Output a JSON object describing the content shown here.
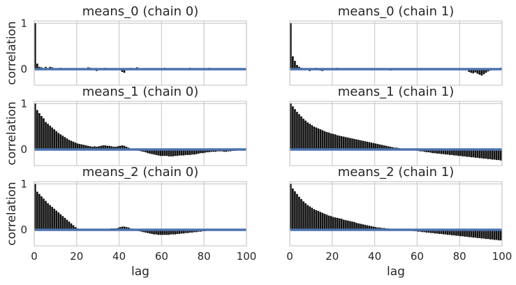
{
  "figure": {
    "xlabel": "lag",
    "ylabel": "correlation"
  },
  "chart_data": [
    {
      "type": "bar",
      "title": "means_0 (chain 0)",
      "xlabel": "",
      "ylabel": "correlation",
      "xlim": [
        0,
        100
      ],
      "ylim": [
        -0.35,
        1.05
      ],
      "xticks": [
        0,
        20,
        40,
        60,
        80,
        100
      ],
      "yticks": [
        0,
        1
      ],
      "bar_color": "#111111",
      "zero_line_color": "#4c72b0",
      "lags": [
        0,
        1,
        2,
        3,
        4,
        5,
        6,
        7,
        8,
        9,
        10,
        11,
        12,
        13,
        14,
        15,
        16,
        17,
        18,
        19,
        20,
        21,
        22,
        23,
        24,
        25,
        26,
        27,
        28,
        29,
        30,
        31,
        32,
        33,
        34,
        35,
        36,
        37,
        38,
        39,
        40,
        41,
        42,
        43,
        44,
        45,
        46,
        47,
        48,
        49,
        50,
        51,
        52,
        53,
        54,
        55,
        56,
        57,
        58,
        59,
        60,
        61,
        62,
        63,
        64,
        65,
        66,
        67,
        68,
        69,
        70,
        71,
        72,
        73,
        74,
        75,
        76,
        77,
        78,
        79,
        80,
        81,
        82,
        83,
        84,
        85,
        86,
        87,
        88,
        89,
        90,
        91,
        92,
        93,
        94,
        95,
        96,
        97,
        98,
        99
      ],
      "values": [
        1.0,
        0.12,
        0.05,
        0.04,
        0.01,
        0.05,
        0.02,
        0.05,
        0.04,
        0.01,
        -0.02,
        0.0,
        0.03,
        0.01,
        -0.01,
        0.02,
        0.02,
        0.0,
        0.0,
        -0.01,
        0.0,
        0.01,
        0.02,
        0.0,
        0.02,
        0.04,
        0.03,
        0.01,
        -0.02,
        -0.04,
        -0.01,
        0.02,
        0.0,
        0.03,
        -0.01,
        -0.02,
        0.02,
        0.01,
        0.0,
        0.02,
        -0.02,
        -0.06,
        -0.08,
        0.0,
        0.02,
        0.03,
        0.0,
        0.01,
        0.04,
        0.0,
        -0.02,
        0.0,
        0.02,
        0.0,
        0.0,
        0.02,
        -0.02,
        0.0,
        0.01,
        0.01,
        0.02,
        0.03,
        0.0,
        -0.01,
        -0.02,
        0.0,
        0.02,
        0.01,
        0.0,
        -0.02,
        0.0,
        0.0,
        0.02,
        0.03,
        0.0,
        -0.01,
        0.0,
        0.01,
        0.0,
        0.0,
        -0.02,
        0.0,
        0.03,
        0.0,
        -0.02,
        0.01,
        0.0,
        -0.02,
        -0.01,
        0.0,
        0.02,
        0.0,
        -0.01,
        -0.01,
        0.02,
        0.0,
        0.0,
        -0.02,
        0.0,
        -0.01
      ]
    },
    {
      "type": "bar",
      "title": "means_0 (chain 1)",
      "xlabel": "",
      "ylabel": "",
      "xlim": [
        0,
        100
      ],
      "ylim": [
        -0.35,
        1.05
      ],
      "xticks": [
        0,
        20,
        40,
        60,
        80,
        100
      ],
      "yticks": [
        0,
        1
      ],
      "bar_color": "#111111",
      "zero_line_color": "#4c72b0",
      "lags": [
        0,
        1,
        2,
        3,
        4,
        5,
        6,
        7,
        8,
        9,
        10,
        11,
        12,
        13,
        14,
        15,
        16,
        17,
        18,
        19,
        20,
        21,
        22,
        23,
        24,
        25,
        26,
        27,
        28,
        29,
        30,
        31,
        32,
        33,
        34,
        35,
        36,
        37,
        38,
        39,
        40,
        41,
        42,
        43,
        44,
        45,
        46,
        47,
        48,
        49,
        50,
        51,
        52,
        53,
        54,
        55,
        56,
        57,
        58,
        59,
        60,
        61,
        62,
        63,
        64,
        65,
        66,
        67,
        68,
        69,
        70,
        71,
        72,
        73,
        74,
        75,
        76,
        77,
        78,
        79,
        80,
        81,
        82,
        83,
        84,
        85,
        86,
        87,
        88,
        89,
        90,
        91,
        92,
        93,
        94,
        95,
        96,
        97,
        98,
        99
      ],
      "values": [
        1.0,
        0.28,
        0.18,
        0.09,
        0.05,
        0.03,
        0.02,
        0.0,
        -0.02,
        -0.04,
        -0.02,
        -0.01,
        0.03,
        0.01,
        -0.03,
        -0.04,
        0.0,
        0.02,
        0.01,
        0.0,
        -0.02,
        0.01,
        0.03,
        0.01,
        0.02,
        -0.01,
        -0.02,
        0.0,
        0.02,
        0.0,
        -0.01,
        -0.02,
        0.0,
        0.01,
        -0.01,
        0.0,
        0.02,
        0.01,
        -0.02,
        0.0,
        0.01,
        0.0,
        -0.01,
        0.02,
        0.0,
        0.01,
        -0.02,
        -0.03,
        0.0,
        0.01,
        0.02,
        0.0,
        -0.01,
        0.0,
        -0.02,
        0.0,
        0.01,
        0.0,
        0.02,
        0.0,
        -0.02,
        0.0,
        0.02,
        0.01,
        0.0,
        -0.01,
        0.0,
        0.02,
        0.01,
        0.0,
        -0.01,
        0.0,
        0.01,
        0.0,
        0.02,
        0.0,
        0.0,
        -0.01,
        0.0,
        0.02,
        -0.02,
        0.01,
        0.0,
        0.0,
        -0.06,
        -0.08,
        -0.09,
        -0.07,
        -0.1,
        -0.12,
        -0.14,
        -0.11,
        -0.08,
        -0.05,
        -0.03,
        0.0,
        0.02,
        0.01,
        0.0,
        0.03
      ]
    },
    {
      "type": "bar",
      "title": "means_1 (chain 0)",
      "xlabel": "",
      "ylabel": "correlation",
      "xlim": [
        0,
        100
      ],
      "ylim": [
        -0.35,
        1.05
      ],
      "xticks": [
        0,
        20,
        40,
        60,
        80,
        100
      ],
      "yticks": [
        0,
        1
      ],
      "bar_color": "#111111",
      "zero_line_color": "#4c72b0",
      "lags": [
        0,
        1,
        2,
        3,
        4,
        5,
        6,
        7,
        8,
        9,
        10,
        11,
        12,
        13,
        14,
        15,
        16,
        17,
        18,
        19,
        20,
        21,
        22,
        23,
        24,
        25,
        26,
        27,
        28,
        29,
        30,
        31,
        32,
        33,
        34,
        35,
        36,
        37,
        38,
        39,
        40,
        41,
        42,
        43,
        44,
        45,
        46,
        47,
        48,
        49,
        50,
        51,
        52,
        53,
        54,
        55,
        56,
        57,
        58,
        59,
        60,
        61,
        62,
        63,
        64,
        65,
        66,
        67,
        68,
        69,
        70,
        71,
        72,
        73,
        74,
        75,
        76,
        77,
        78,
        79,
        80,
        81,
        82,
        83,
        84,
        85,
        86,
        87,
        88,
        89,
        90,
        91,
        92,
        93,
        94,
        95,
        96,
        97,
        98,
        99
      ],
      "values": [
        1.0,
        0.86,
        0.79,
        0.73,
        0.68,
        0.6,
        0.56,
        0.52,
        0.48,
        0.44,
        0.4,
        0.36,
        0.33,
        0.3,
        0.27,
        0.24,
        0.21,
        0.19,
        0.17,
        0.15,
        0.13,
        0.12,
        0.11,
        0.1,
        0.09,
        0.08,
        0.07,
        0.06,
        0.07,
        0.06,
        0.07,
        0.08,
        0.09,
        0.09,
        0.08,
        0.08,
        0.07,
        0.06,
        0.06,
        0.07,
        0.08,
        0.09,
        0.08,
        0.06,
        0.04,
        0.02,
        0.0,
        -0.01,
        -0.02,
        -0.03,
        -0.04,
        -0.05,
        -0.06,
        -0.08,
        -0.09,
        -0.1,
        -0.11,
        -0.12,
        -0.13,
        -0.14,
        -0.14,
        -0.14,
        -0.14,
        -0.15,
        -0.15,
        -0.15,
        -0.14,
        -0.14,
        -0.13,
        -0.13,
        -0.13,
        -0.12,
        -0.12,
        -0.12,
        -0.11,
        -0.11,
        -0.1,
        -0.09,
        -0.08,
        -0.08,
        -0.07,
        -0.06,
        -0.06,
        -0.05,
        -0.05,
        -0.05,
        -0.04,
        -0.04,
        -0.04,
        -0.05,
        -0.05,
        -0.04,
        -0.04,
        -0.03,
        -0.03,
        -0.02,
        -0.02,
        -0.01,
        -0.01,
        -0.01
      ]
    },
    {
      "type": "bar",
      "title": "means_1 (chain 1)",
      "xlabel": "",
      "ylabel": "",
      "xlim": [
        0,
        100
      ],
      "ylim": [
        -0.35,
        1.05
      ],
      "xticks": [
        0,
        20,
        40,
        60,
        80,
        100
      ],
      "yticks": [
        0,
        1
      ],
      "bar_color": "#111111",
      "zero_line_color": "#4c72b0",
      "lags": [
        0,
        1,
        2,
        3,
        4,
        5,
        6,
        7,
        8,
        9,
        10,
        11,
        12,
        13,
        14,
        15,
        16,
        17,
        18,
        19,
        20,
        21,
        22,
        23,
        24,
        25,
        26,
        27,
        28,
        29,
        30,
        31,
        32,
        33,
        34,
        35,
        36,
        37,
        38,
        39,
        40,
        41,
        42,
        43,
        44,
        45,
        46,
        47,
        48,
        49,
        50,
        51,
        52,
        53,
        54,
        55,
        56,
        57,
        58,
        59,
        60,
        61,
        62,
        63,
        64,
        65,
        66,
        67,
        68,
        69,
        70,
        71,
        72,
        73,
        74,
        75,
        76,
        77,
        78,
        79,
        80,
        81,
        82,
        83,
        84,
        85,
        86,
        87,
        88,
        89,
        90,
        91,
        92,
        93,
        94,
        95,
        96,
        97,
        98,
        99
      ],
      "values": [
        1.0,
        0.94,
        0.88,
        0.82,
        0.77,
        0.72,
        0.67,
        0.63,
        0.59,
        0.56,
        0.53,
        0.5,
        0.48,
        0.46,
        0.44,
        0.42,
        0.4,
        0.38,
        0.37,
        0.35,
        0.34,
        0.33,
        0.31,
        0.3,
        0.29,
        0.28,
        0.27,
        0.26,
        0.25,
        0.24,
        0.23,
        0.22,
        0.21,
        0.2,
        0.19,
        0.18,
        0.17,
        0.16,
        0.15,
        0.14,
        0.13,
        0.12,
        0.11,
        0.1,
        0.09,
        0.08,
        0.07,
        0.06,
        0.05,
        0.04,
        0.04,
        0.03,
        0.02,
        0.02,
        0.01,
        0.0,
        0.0,
        -0.01,
        -0.02,
        -0.02,
        -0.03,
        -0.04,
        -0.04,
        -0.05,
        -0.06,
        -0.06,
        -0.07,
        -0.08,
        -0.08,
        -0.09,
        -0.09,
        -0.1,
        -0.1,
        -0.11,
        -0.11,
        -0.12,
        -0.12,
        -0.13,
        -0.13,
        -0.14,
        -0.14,
        -0.15,
        -0.15,
        -0.16,
        -0.16,
        -0.17,
        -0.17,
        -0.18,
        -0.18,
        -0.19,
        -0.19,
        -0.2,
        -0.2,
        -0.21,
        -0.21,
        -0.22,
        -0.22,
        -0.23,
        -0.23,
        -0.24
      ]
    },
    {
      "type": "bar",
      "title": "means_2 (chain 0)",
      "xlabel": "lag",
      "ylabel": "correlation",
      "xlim": [
        0,
        100
      ],
      "ylim": [
        -0.35,
        1.05
      ],
      "xticks": [
        0,
        20,
        40,
        60,
        80,
        100
      ],
      "yticks": [
        0,
        1
      ],
      "xticklabels": [
        "0",
        "20",
        "40",
        "60",
        "80",
        "100"
      ],
      "bar_color": "#111111",
      "zero_line_color": "#4c72b0",
      "lags": [
        0,
        1,
        2,
        3,
        4,
        5,
        6,
        7,
        8,
        9,
        10,
        11,
        12,
        13,
        14,
        15,
        16,
        17,
        18,
        19,
        20,
        21,
        22,
        23,
        24,
        25,
        26,
        27,
        28,
        29,
        30,
        31,
        32,
        33,
        34,
        35,
        36,
        37,
        38,
        39,
        40,
        41,
        42,
        43,
        44,
        45,
        46,
        47,
        48,
        49,
        50,
        51,
        52,
        53,
        54,
        55,
        56,
        57,
        58,
        59,
        60,
        61,
        62,
        63,
        64,
        65,
        66,
        67,
        68,
        69,
        70,
        71,
        72,
        73,
        74,
        75,
        76,
        77,
        78,
        79,
        80,
        81,
        82,
        83,
        84,
        85,
        86,
        87,
        88,
        89,
        90,
        91,
        92,
        93,
        94,
        95,
        96,
        97,
        98,
        99
      ],
      "values": [
        1.0,
        0.83,
        0.78,
        0.73,
        0.68,
        0.63,
        0.58,
        0.54,
        0.5,
        0.46,
        0.42,
        0.38,
        0.34,
        0.3,
        0.26,
        0.22,
        0.18,
        0.14,
        0.1,
        0.06,
        0.03,
        0.01,
        0.0,
        -0.01,
        -0.01,
        0.0,
        0.0,
        0.01,
        0.0,
        0.0,
        0.01,
        0.01,
        0.02,
        0.02,
        0.02,
        0.02,
        0.03,
        0.03,
        0.03,
        0.04,
        0.06,
        0.07,
        0.07,
        0.06,
        0.05,
        0.03,
        0.01,
        0.0,
        -0.02,
        -0.03,
        -0.04,
        -0.05,
        -0.06,
        -0.07,
        -0.08,
        -0.09,
        -0.1,
        -0.1,
        -0.11,
        -0.11,
        -0.11,
        -0.11,
        -0.11,
        -0.11,
        -0.1,
        -0.1,
        -0.1,
        -0.09,
        -0.09,
        -0.08,
        -0.08,
        -0.07,
        -0.07,
        -0.06,
        -0.06,
        -0.05,
        -0.05,
        -0.04,
        -0.04,
        -0.03,
        -0.03,
        -0.02,
        -0.02,
        -0.02,
        -0.01,
        -0.01,
        -0.01,
        0.0,
        0.0,
        0.0,
        0.0,
        0.0,
        0.0,
        0.0,
        0.0,
        0.0,
        0.0,
        0.0,
        0.0,
        0.0
      ]
    },
    {
      "type": "bar",
      "title": "means_2 (chain 1)",
      "xlabel": "lag",
      "ylabel": "",
      "xlim": [
        0,
        100
      ],
      "ylim": [
        -0.35,
        1.05
      ],
      "xticks": [
        0,
        20,
        40,
        60,
        80,
        100
      ],
      "yticks": [
        0,
        1
      ],
      "xticklabels": [
        "0",
        "20",
        "40",
        "60",
        "80",
        "100"
      ],
      "bar_color": "#111111",
      "zero_line_color": "#4c72b0",
      "lags": [
        0,
        1,
        2,
        3,
        4,
        5,
        6,
        7,
        8,
        9,
        10,
        11,
        12,
        13,
        14,
        15,
        16,
        17,
        18,
        19,
        20,
        21,
        22,
        23,
        24,
        25,
        26,
        27,
        28,
        29,
        30,
        31,
        32,
        33,
        34,
        35,
        36,
        37,
        38,
        39,
        40,
        41,
        42,
        43,
        44,
        45,
        46,
        47,
        48,
        49,
        50,
        51,
        52,
        53,
        54,
        55,
        56,
        57,
        58,
        59,
        60,
        61,
        62,
        63,
        64,
        65,
        66,
        67,
        68,
        69,
        70,
        71,
        72,
        73,
        74,
        75,
        76,
        77,
        78,
        79,
        80,
        81,
        82,
        83,
        84,
        85,
        86,
        87,
        88,
        89,
        90,
        91,
        92,
        93,
        94,
        95,
        96,
        97,
        98,
        99
      ],
      "values": [
        1.0,
        0.9,
        0.84,
        0.78,
        0.72,
        0.67,
        0.62,
        0.58,
        0.54,
        0.51,
        0.48,
        0.45,
        0.43,
        0.41,
        0.39,
        0.37,
        0.35,
        0.33,
        0.31,
        0.3,
        0.28,
        0.27,
        0.26,
        0.25,
        0.24,
        0.22,
        0.21,
        0.2,
        0.19,
        0.18,
        0.17,
        0.15,
        0.14,
        0.13,
        0.12,
        0.11,
        0.1,
        0.09,
        0.08,
        0.07,
        0.06,
        0.05,
        0.05,
        0.04,
        0.04,
        0.03,
        0.03,
        0.02,
        0.02,
        0.01,
        0.01,
        0.0,
        0.0,
        0.0,
        -0.01,
        -0.01,
        -0.02,
        -0.02,
        -0.03,
        -0.03,
        -0.04,
        -0.04,
        -0.05,
        -0.05,
        -0.06,
        -0.06,
        -0.07,
        -0.07,
        -0.08,
        -0.08,
        -0.09,
        -0.09,
        -0.1,
        -0.1,
        -0.11,
        -0.11,
        -0.12,
        -0.12,
        -0.13,
        -0.13,
        -0.14,
        -0.14,
        -0.15,
        -0.15,
        -0.16,
        -0.16,
        -0.17,
        -0.17,
        -0.18,
        -0.18,
        -0.19,
        -0.19,
        -0.2,
        -0.2,
        -0.21,
        -0.21,
        -0.22,
        -0.22,
        -0.23,
        -0.23
      ]
    }
  ]
}
